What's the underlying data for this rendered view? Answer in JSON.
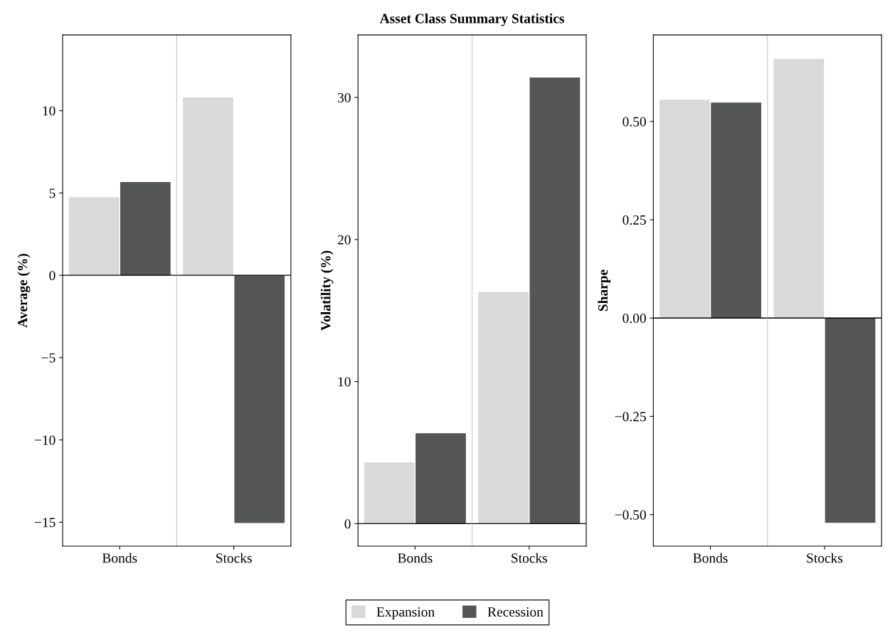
{
  "chart_data": [
    {
      "type": "bar",
      "ylabel": "Average (%)",
      "categories": [
        "Bonds"
      ],
      "series": [
        {
          "name": "Expansion",
          "color": "#d9d9d9",
          "values": [
            4.75
          ]
        },
        {
          "name": "Recession",
          "color": "#545655",
          "values": [
            5.66
          ]
        }
      ],
      "ylim": [
        -16.45,
        14.6
      ],
      "yticks": [
        {
          "value": -15,
          "label": "−15"
        },
        {
          "value": -10,
          "label": "−10"
        },
        {
          "value": -5,
          "label": "−5"
        },
        0,
        5,
        10
      ],
      "legend": "bottom",
      "ref_lines": [
        {
          "axis": "y",
          "value": 0,
          "color": "#000000"
        }
      ]
    },
    {
      "type": "bar",
      "categories": [
        "Stocks"
      ],
      "series": [
        {
          "color": "#d9d9d9",
          "values": [
            10.8
          ]
        },
        {
          "color": "#545655",
          "values": [
            -15.05
          ]
        }
      ],
      "ylim": [
        -16.45,
        14.6
      ],
      "tick_labels": "x",
      "ref_lines": [
        {
          "axis": "y",
          "value": 0,
          "color": "#000000"
        }
      ]
    },
    {
      "type": "bar",
      "title": "Asset Class Summary Statistics",
      "ylabel": "Volatility (%)",
      "categories": [
        "Bonds"
      ],
      "series": [
        {
          "color": "#d9d9d9",
          "values": [
            4.31
          ]
        },
        {
          "color": "#545655",
          "values": [
            6.37
          ]
        }
      ],
      "ylim": [
        -1.58,
        34.4
      ],
      "yticks": [
        0,
        10,
        20,
        30
      ],
      "ref_lines": [
        {
          "axis": "y",
          "value": 0,
          "color": "#000000"
        }
      ]
    },
    {
      "type": "bar",
      "categories": [
        "Stocks"
      ],
      "series": [
        {
          "color": "#d9d9d9",
          "values": [
            16.3
          ]
        },
        {
          "color": "#545655",
          "values": [
            31.4
          ]
        }
      ],
      "ylim": [
        -1.58,
        34.4
      ],
      "tick_labels": "x",
      "ref_lines": [
        {
          "axis": "y",
          "value": 0,
          "color": "#000000"
        }
      ]
    },
    {
      "type": "bar",
      "ylabel": "Sharpe",
      "categories": [
        "Bonds"
      ],
      "series": [
        {
          "color": "#d9d9d9",
          "values": [
            0.555
          ]
        },
        {
          "color": "#545655",
          "values": [
            0.548
          ]
        }
      ],
      "ylim": [
        -0.58,
        0.72
      ],
      "yticks": [
        {
          "value": -0.5,
          "label": "−0.50"
        },
        {
          "value": -0.25,
          "label": "−0.25"
        },
        {
          "value": 0,
          "label": "0.00"
        },
        {
          "value": 0.25,
          "label": "0.25"
        },
        {
          "value": 0.5,
          "label": "0.50"
        }
      ],
      "ref_lines": [
        {
          "axis": "y",
          "value": 0,
          "color": "#000000"
        }
      ]
    },
    {
      "type": "bar",
      "categories": [
        "Stocks"
      ],
      "series": [
        {
          "color": "#d9d9d9",
          "values": [
            0.659
          ]
        },
        {
          "color": "#545655",
          "values": [
            -0.521
          ]
        }
      ],
      "ylim": [
        -0.58,
        0.72
      ],
      "tick_labels": "x",
      "ref_lines": [
        {
          "axis": "y",
          "value": 0,
          "color": "#000000"
        }
      ]
    }
  ]
}
